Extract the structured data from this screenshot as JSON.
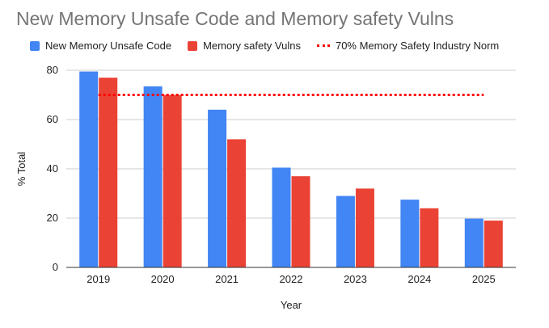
{
  "chart_data": {
    "type": "bar",
    "title": "New Memory Unsafe Code and Memory safety Vulns",
    "xlabel": "Year",
    "ylabel": "% Total",
    "categories": [
      "2019",
      "2020",
      "2021",
      "2022",
      "2023",
      "2024",
      "2025"
    ],
    "series": [
      {
        "name": "New Memory Unsafe Code",
        "color": "#4285f4",
        "values": [
          79.5,
          73.5,
          64,
          40.5,
          29,
          27.5,
          19.8
        ]
      },
      {
        "name": "Memory safety Vulns",
        "color": "#ea4335",
        "values": [
          77,
          70,
          52,
          37,
          32,
          24,
          19
        ]
      }
    ],
    "reference_line": {
      "name": "70% Memory Safety Industry Norm",
      "value": 70,
      "color": "#ff0000",
      "style": "dotted",
      "x_start": "2019",
      "x_end": "2025"
    },
    "yticks": [
      0,
      20,
      40,
      60,
      80
    ],
    "ylim": [
      0,
      80
    ],
    "grid": true,
    "legend_position": "top-left"
  }
}
